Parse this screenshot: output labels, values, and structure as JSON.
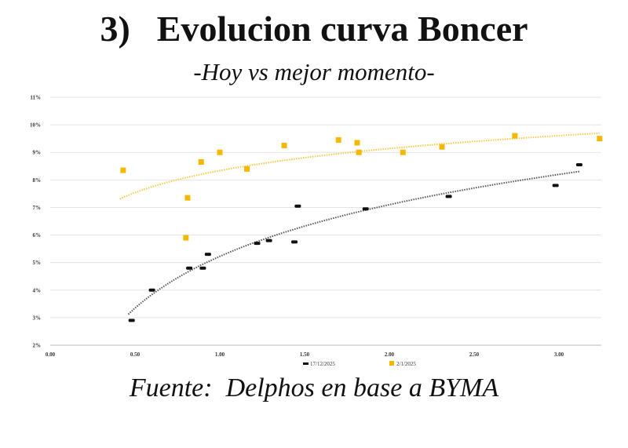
{
  "title": {
    "number": "3)",
    "text": "Evolucion curva Boncer"
  },
  "subtitle": "-Hoy vs mejor momento-",
  "footer": "Fuente:  Delphos en base a BYMA",
  "chart_data": {
    "type": "scatter",
    "xlim": [
      0,
      3.25
    ],
    "ylim": [
      2,
      11
    ],
    "x_ticks": [
      "0.00",
      "0.50",
      "1.00",
      "1.50",
      "2.00",
      "2.50",
      "3.00"
    ],
    "x_tick_values": [
      0,
      0.5,
      1.0,
      1.5,
      2.0,
      2.5,
      3.0
    ],
    "y_ticks": [
      "2%",
      "3%",
      "4%",
      "5%",
      "6%",
      "7%",
      "8%",
      "9%",
      "10%",
      "11%"
    ],
    "y_tick_values": [
      2,
      3,
      4,
      5,
      6,
      7,
      8,
      9,
      10,
      11
    ],
    "grid": true,
    "legend_position": "bottom-center",
    "series": [
      {
        "name": "17/12/2025",
        "color": "#111111",
        "trendline_color": "#555555",
        "x": [
          0.48,
          0.6,
          0.82,
          0.9,
          0.93,
          1.22,
          1.29,
          1.44,
          1.46,
          1.86,
          2.35,
          2.98,
          3.12
        ],
        "y": [
          2.9,
          4.0,
          4.8,
          4.8,
          5.3,
          5.7,
          5.8,
          5.75,
          7.05,
          6.95,
          7.4,
          7.8,
          8.55
        ]
      },
      {
        "name": "2/1/2025",
        "color": "#F5B800",
        "trendline_color": "#F7C948",
        "x": [
          0.43,
          0.8,
          0.81,
          0.89,
          1.0,
          1.16,
          1.38,
          1.7,
          1.81,
          1.82,
          2.08,
          2.31,
          2.74,
          3.24
        ],
        "y": [
          8.35,
          5.9,
          7.35,
          8.65,
          9.0,
          8.4,
          9.25,
          9.45,
          9.35,
          9.0,
          9.0,
          9.2,
          9.6,
          9.5
        ]
      }
    ]
  }
}
